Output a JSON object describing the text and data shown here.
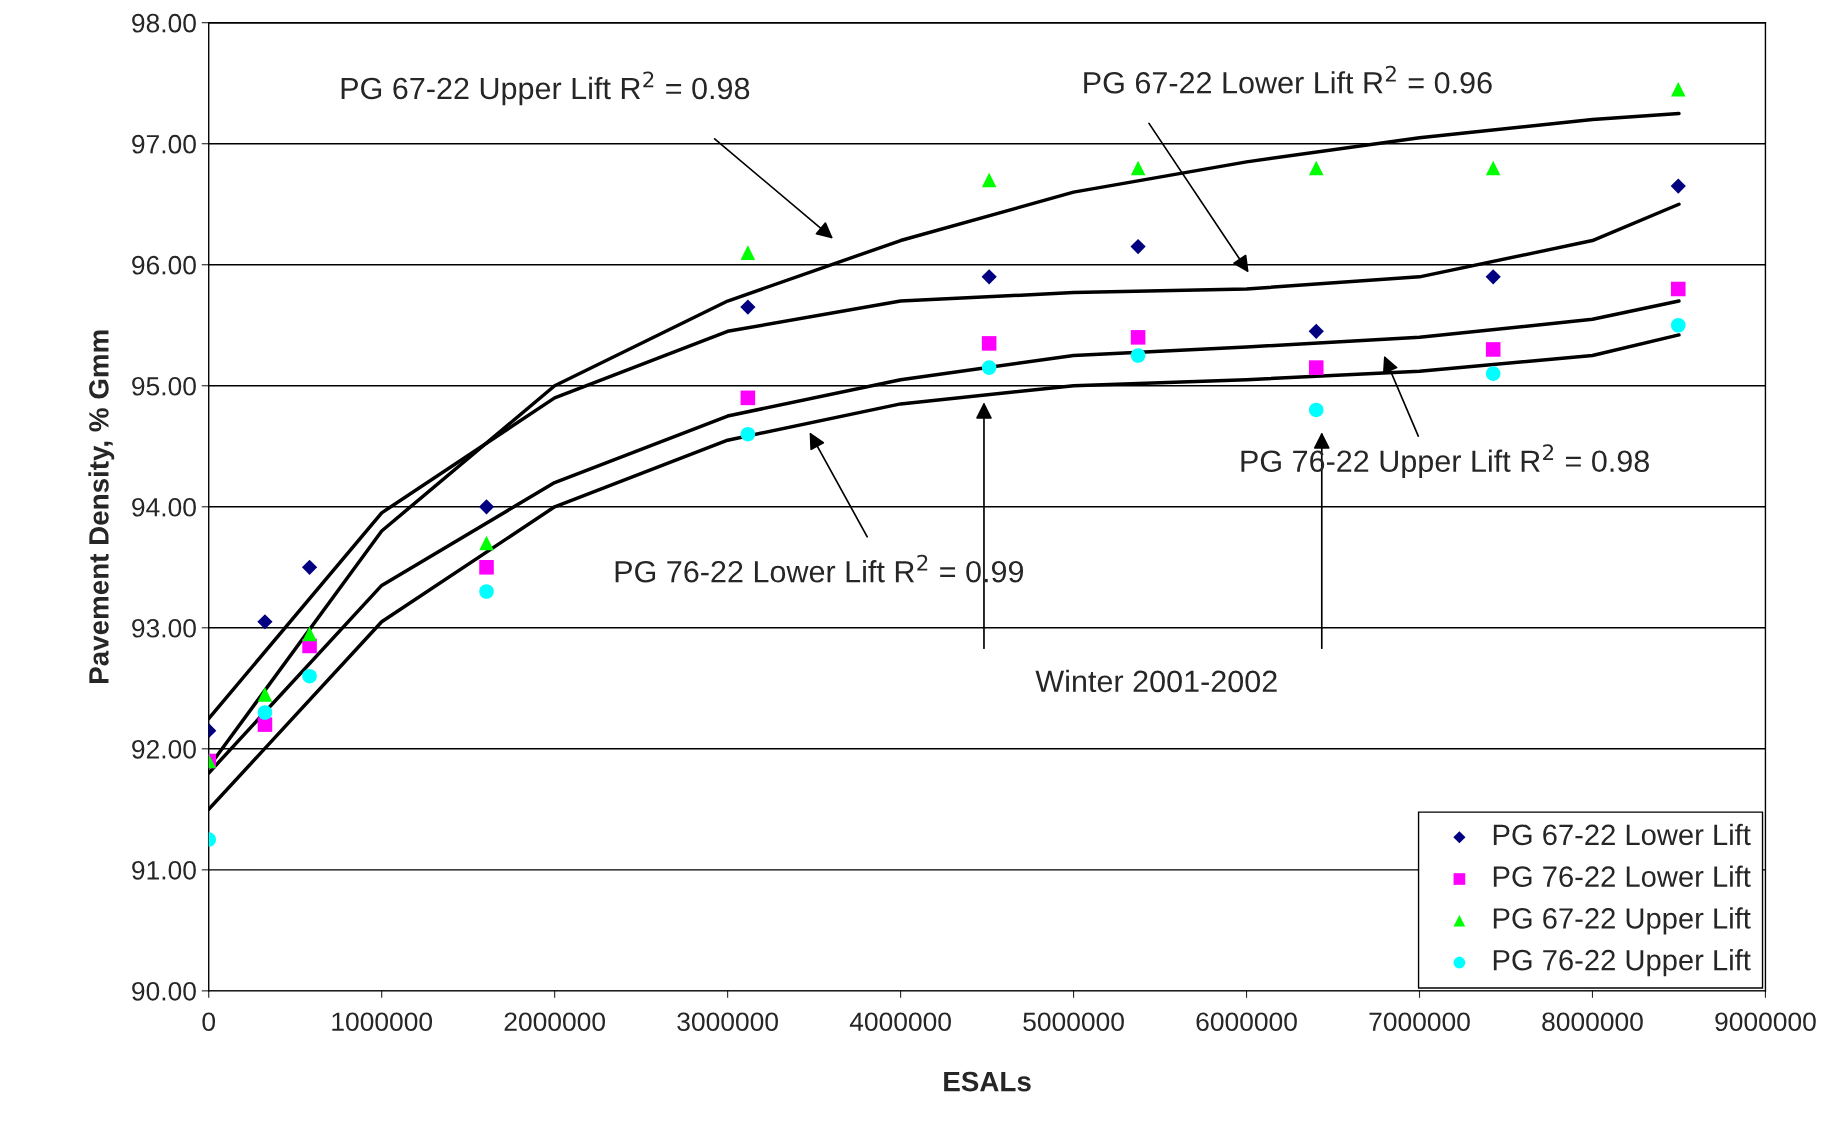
{
  "chart_data": {
    "type": "scatter",
    "xlabel": "ESALs",
    "ylabel": "Pavement Density, % Gmm",
    "xlim": [
      0,
      9000000
    ],
    "xticks": [
      0,
      1000000,
      2000000,
      3000000,
      4000000,
      5000000,
      6000000,
      7000000,
      8000000,
      9000000
    ],
    "ylim": [
      90,
      98
    ],
    "yticks": [
      {
        "value": 90,
        "label": "90.00"
      },
      {
        "value": 91,
        "label": "91.00"
      },
      {
        "value": 92,
        "label": "92.00"
      },
      {
        "value": 93,
        "label": "93.00"
      },
      {
        "value": 94,
        "label": "94.00"
      },
      {
        "value": 95,
        "label": "95.00"
      },
      {
        "value": 96,
        "label": "96.00"
      },
      {
        "value": 97,
        "label": "97.00"
      },
      {
        "value": 98,
        "label": "98.00"
      }
    ],
    "grid": "y",
    "legend": "bottom right",
    "x": [
      0,
      325000,
      583000,
      1606000,
      3117000,
      4512000,
      5373000,
      6403000,
      7426000,
      8496000
    ],
    "series": [
      {
        "name": "PG 67-22 Lower Lift",
        "marker": "diamond",
        "color": "#000080",
        "values": [
          92.15,
          93.05,
          93.5,
          94.0,
          95.65,
          95.9,
          96.15,
          95.45,
          95.9,
          96.65
        ]
      },
      {
        "name": "PG 76-22 Lower Lift",
        "marker": "square",
        "color": "#ff00ff",
        "values": [
          91.9,
          92.2,
          92.85,
          93.5,
          94.9,
          95.35,
          95.4,
          95.15,
          95.3,
          95.8
        ]
      },
      {
        "name": "PG 67-22 Upper Lift",
        "marker": "triangle",
        "color": "#00ff00",
        "values": [
          91.9,
          92.45,
          92.95,
          93.7,
          96.1,
          96.7,
          96.8,
          96.8,
          96.8,
          97.45
        ]
      },
      {
        "name": "PG 76-22 Upper Lift",
        "marker": "circle",
        "color": "#00ffff",
        "values": [
          91.25,
          92.3,
          92.6,
          93.3,
          94.6,
          95.15,
          95.25,
          94.8,
          95.1,
          95.5
        ]
      },
      {
        "type": "line",
        "marker": "none",
        "color": "#000000",
        "x": [
          0,
          1000000,
          2000000,
          3000000,
          4000000,
          5000000,
          6000000,
          7000000,
          8000000,
          8500000
        ],
        "values": [
          92.25,
          93.95,
          94.9,
          95.45,
          95.7,
          95.77,
          95.8,
          95.9,
          96.2,
          96.5
        ]
      },
      {
        "type": "line",
        "marker": "none",
        "color": "#000000",
        "x": [
          0,
          1000000,
          2000000,
          3000000,
          4000000,
          5000000,
          6000000,
          7000000,
          8000000,
          8500000
        ],
        "values": [
          91.8,
          93.35,
          94.2,
          94.75,
          95.05,
          95.25,
          95.32,
          95.4,
          95.55,
          95.7
        ]
      },
      {
        "type": "line",
        "marker": "none",
        "color": "#000000",
        "x": [
          0,
          1000000,
          2000000,
          3000000,
          4000000,
          5000000,
          6000000,
          7000000,
          8000000,
          8500000
        ],
        "values": [
          91.85,
          93.8,
          95.0,
          95.7,
          96.2,
          96.6,
          96.85,
          97.05,
          97.2,
          97.25
        ]
      },
      {
        "type": "line",
        "marker": "none",
        "color": "#000000",
        "x": [
          0,
          1000000,
          2000000,
          3000000,
          4000000,
          5000000,
          6000000,
          7000000,
          8000000,
          8500000
        ],
        "values": [
          91.5,
          93.05,
          94.0,
          94.55,
          94.85,
          95.0,
          95.05,
          95.12,
          95.25,
          95.42
        ]
      }
    ],
    "annotations": [
      "PG 67-22 Upper Lift R$^{2}$ = 0.98",
      "PG 67-22 Lower Lift R$^{2}$ = 0.96",
      "PG 76-22 Upper Lift R$^{2}$ = 0.98",
      "PG 76-22 Lower Lift R$^{2}$ = 0.99",
      "Winter 2001-2002"
    ]
  }
}
